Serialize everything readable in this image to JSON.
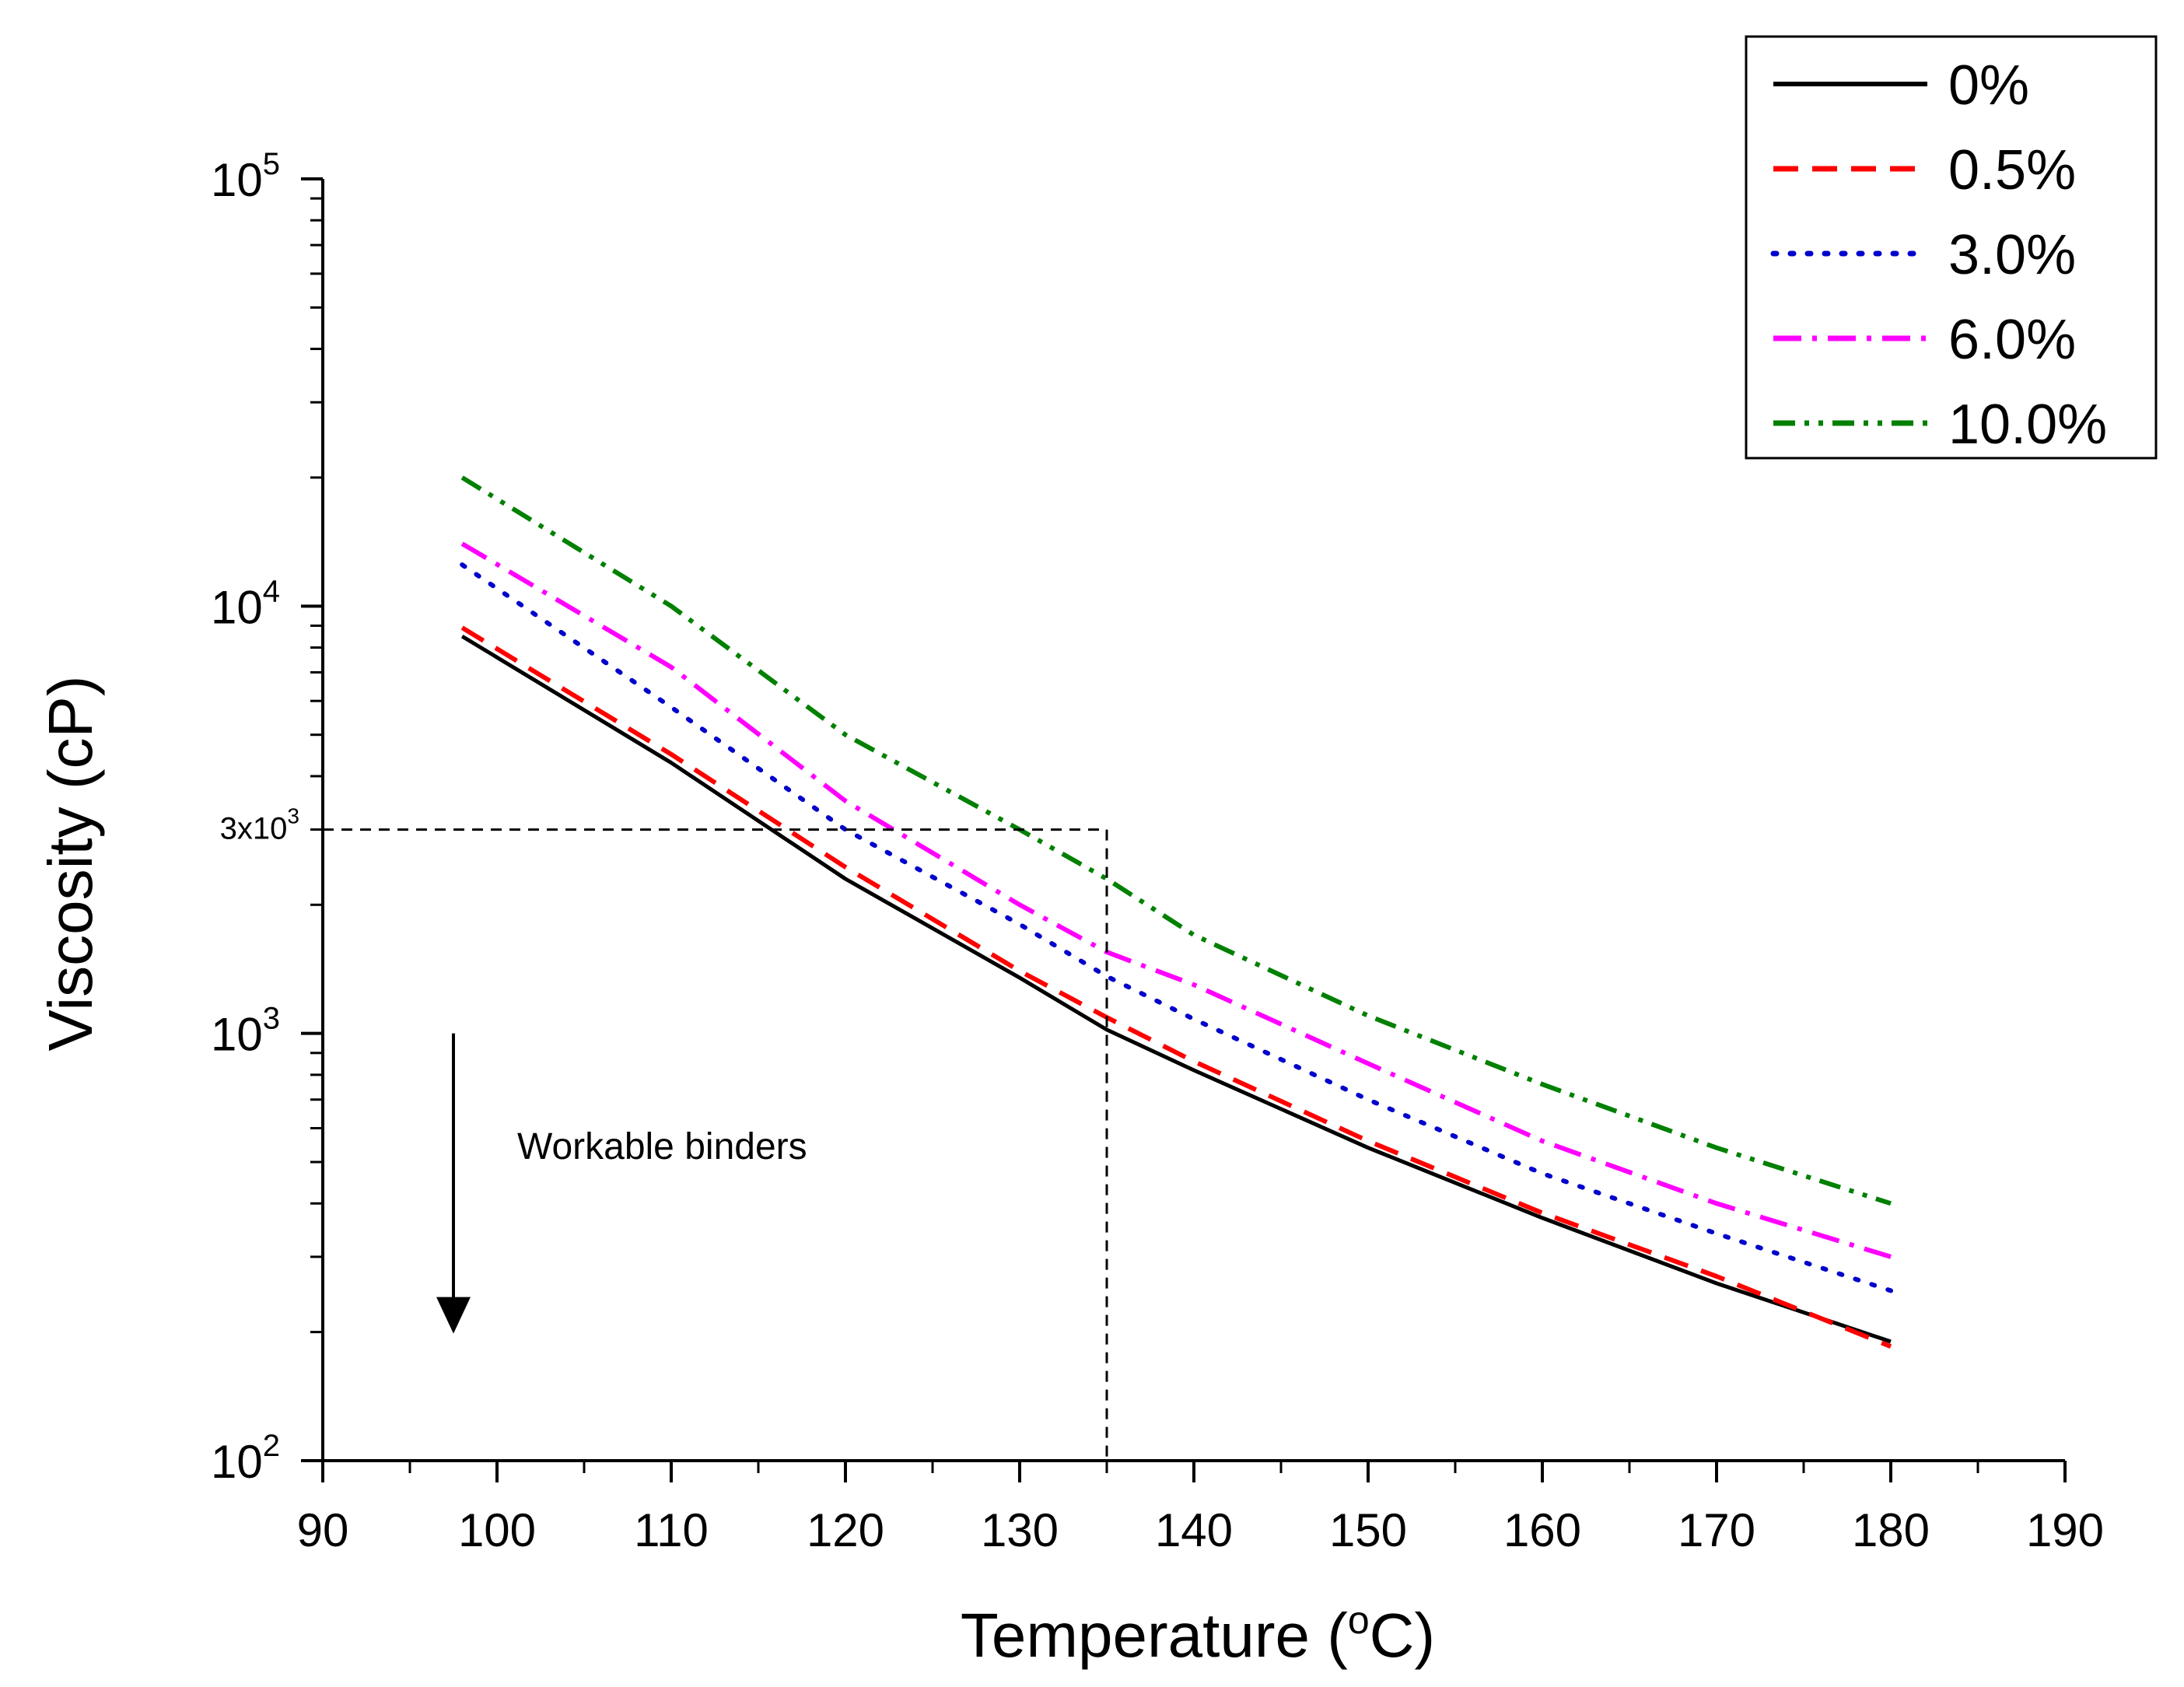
{
  "chart_data": {
    "type": "line",
    "title": "",
    "xlabel": "Temperature (",
    "xlabel_sup": "o",
    "xlabel_end": "C)",
    "ylabel": "Viscosity (cP)",
    "xlim": [
      90,
      190
    ],
    "ylim": [
      100,
      100000
    ],
    "yscale": "log",
    "grid": false,
    "legend_position": "top-right",
    "x_ticks": [
      90,
      100,
      110,
      120,
      130,
      140,
      150,
      160,
      170,
      180,
      190
    ],
    "x_tick_labels": [
      "90",
      "100",
      "110",
      "120",
      "130",
      "140",
      "150",
      "160",
      "170",
      "180",
      "190"
    ],
    "y_ticks": [
      {
        "value": 100,
        "base": "10",
        "exp": "2"
      },
      {
        "value": 1000,
        "base": "10",
        "exp": "3"
      },
      {
        "value": 10000,
        "base": "10",
        "exp": "4"
      },
      {
        "value": 100000,
        "base": "10",
        "exp": "5"
      }
    ],
    "x": [
      98,
      110,
      120,
      130,
      135,
      140,
      150,
      160,
      170,
      180
    ],
    "series": [
      {
        "name": "0%",
        "color": "#000000",
        "dash": "solid",
        "values": [
          8500,
          4300,
          2300,
          1350,
          1020,
          820,
          540,
          370,
          260,
          190
        ]
      },
      {
        "name": "0.5%",
        "color": "#ff0000",
        "dash": "dash",
        "values": [
          8900,
          4500,
          2450,
          1400,
          1090,
          860,
          560,
          380,
          270,
          185
        ]
      },
      {
        "name": "3.0%",
        "color": "#0000cc",
        "dash": "dot",
        "values": [
          12500,
          5800,
          3000,
          1800,
          1360,
          1080,
          700,
          470,
          340,
          250
        ]
      },
      {
        "name": "6.0%",
        "color": "#ff00ff",
        "dash": "dashdot",
        "values": [
          14000,
          7200,
          3500,
          2000,
          1550,
          1300,
          850,
          560,
          400,
          300
        ]
      },
      {
        "name": "10.0%",
        "color": "#008000",
        "dash": "dashdotdot",
        "values": [
          20000,
          10000,
          5000,
          3000,
          2300,
          1700,
          1100,
          760,
          540,
          400
        ]
      }
    ],
    "reference": {
      "x": 135,
      "y": 3000,
      "label_base": "3x10",
      "label_exp": "3"
    },
    "annotation": {
      "text": "Workable binders",
      "arrow_x": 97.5,
      "arrow_from": 1000,
      "arrow_to": 200
    }
  }
}
